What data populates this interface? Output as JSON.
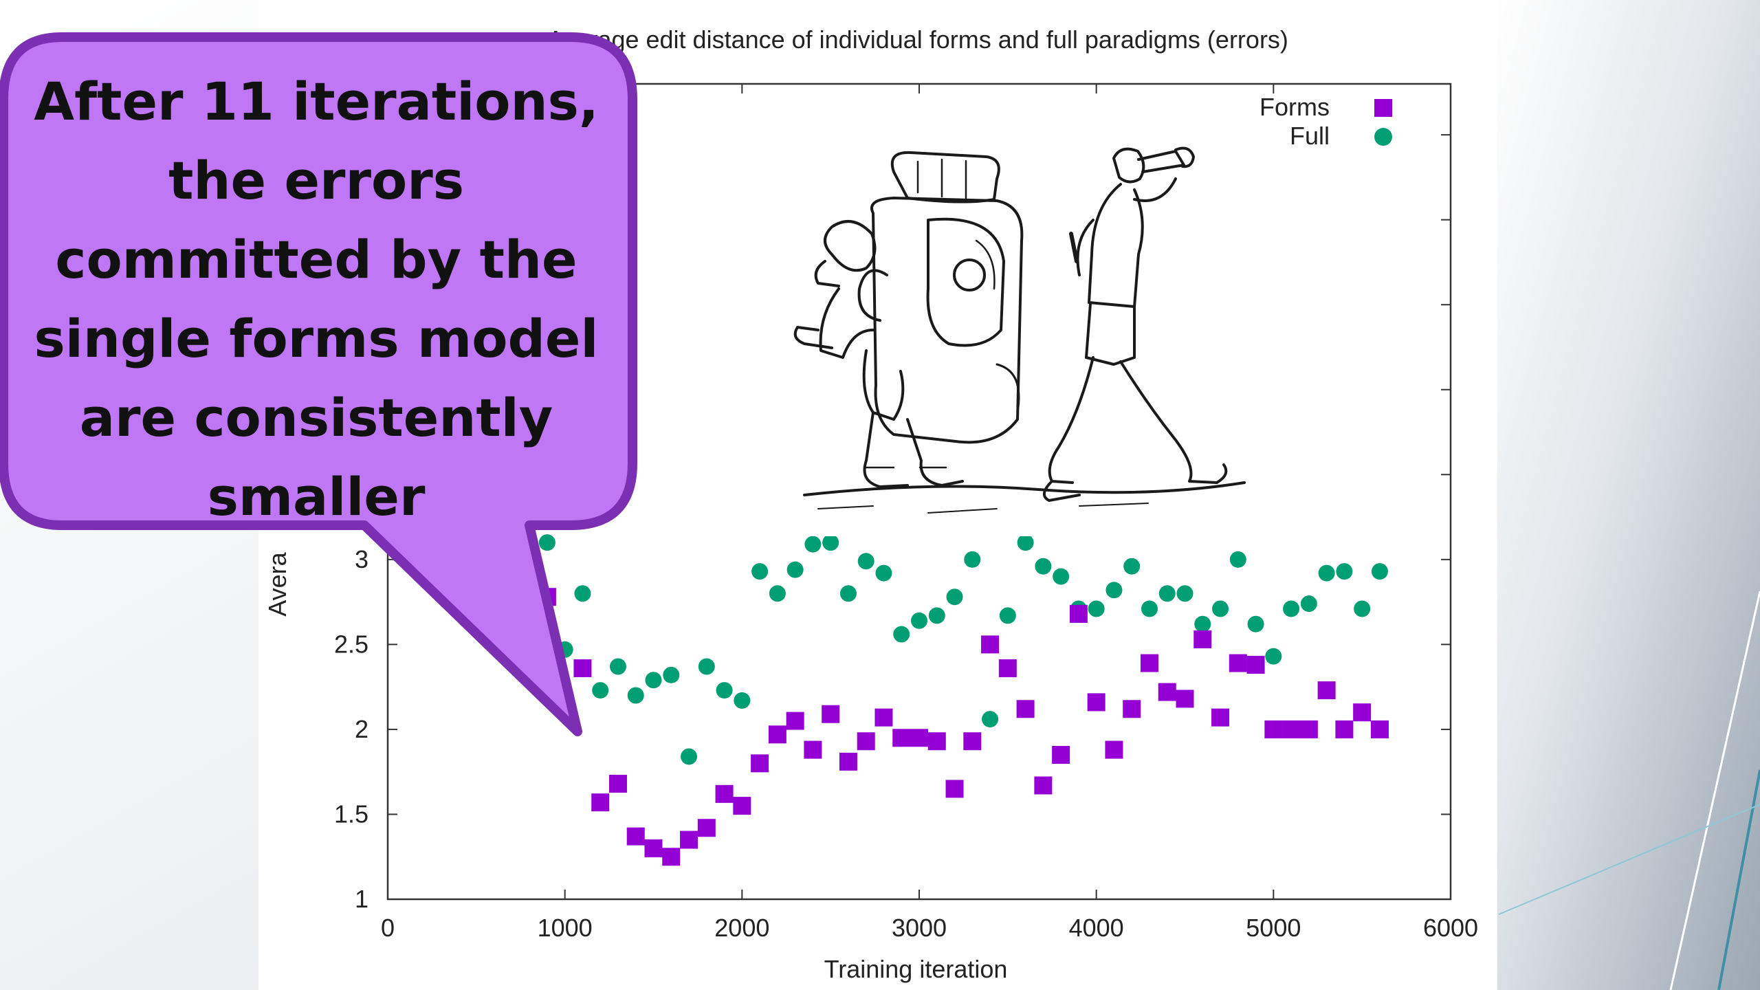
{
  "callout": {
    "text": "After 11 iterations,\nthe errors\ncommitted by the\nsingle forms model\nare consistently\nsmaller",
    "fill": "#c077f5",
    "stroke": "#7b2fb3"
  },
  "illustration": {
    "icon": "hikers-illustration"
  },
  "chart_data": {
    "type": "scatter",
    "title": "Average edit distance of individual forms and full paradigms (errors)",
    "xlabel": "Training iteration",
    "ylabel": "Avera",
    "xlim": [
      0,
      6000
    ],
    "ylim": [
      1,
      5.8
    ],
    "x_ticks": [
      0,
      1000,
      2000,
      3000,
      4000,
      5000,
      6000
    ],
    "y_ticks": [
      1,
      1.5,
      2,
      2.5,
      3
    ],
    "x_tick_labels": [
      "0",
      "1000",
      "2000",
      "3000",
      "4000",
      "5000",
      "6000"
    ],
    "y_tick_labels": [
      "1",
      "1.5",
      "2",
      "2.5",
      "3"
    ],
    "legend_position": "top-right",
    "series": [
      {
        "name": "Forms",
        "marker": "square",
        "color": "#9400d3",
        "x": [
          900,
          1100,
          1200,
          1300,
          1400,
          1500,
          1600,
          1700,
          1800,
          1900,
          2000,
          2100,
          2200,
          2300,
          2400,
          2500,
          2600,
          2700,
          2800,
          2900,
          3000,
          3100,
          3200,
          3300,
          3400,
          3500,
          3600,
          3700,
          3800,
          3900,
          4000,
          4100,
          4200,
          4300,
          4400,
          4500,
          4600,
          4700,
          4800,
          4900,
          5000,
          5100,
          5200,
          5300,
          5400,
          5500,
          5600
        ],
        "y": [
          2.78,
          2.36,
          1.57,
          1.68,
          1.37,
          1.3,
          1.25,
          1.35,
          1.42,
          1.62,
          1.55,
          1.8,
          1.97,
          2.05,
          1.88,
          2.09,
          1.81,
          1.93,
          2.07,
          1.95,
          1.95,
          1.93,
          1.65,
          1.93,
          2.5,
          2.36,
          2.12,
          1.67,
          1.85,
          2.68,
          2.16,
          1.88,
          2.12,
          2.39,
          2.22,
          2.18,
          2.53,
          2.07,
          2.39,
          2.38,
          2.0,
          2.0,
          2.0,
          2.23,
          2.0,
          2.1,
          2.0
        ]
      },
      {
        "name": "Full",
        "marker": "circle",
        "color": "#009e73",
        "x": [
          900,
          1000,
          1100,
          1200,
          1300,
          1400,
          1500,
          1600,
          1700,
          1800,
          1900,
          2000,
          2100,
          2200,
          2300,
          2400,
          2500,
          2600,
          2700,
          2800,
          2900,
          3000,
          3100,
          3200,
          3300,
          3400,
          3500,
          3600,
          3700,
          3800,
          3900,
          4000,
          4100,
          4200,
          4300,
          4400,
          4500,
          4600,
          4700,
          4800,
          4900,
          5000,
          5100,
          5200,
          5300,
          5400,
          5500,
          5600
        ],
        "y": [
          3.1,
          2.47,
          2.8,
          2.23,
          2.37,
          2.2,
          2.29,
          2.32,
          1.84,
          2.37,
          2.23,
          2.17,
          2.93,
          2.8,
          2.94,
          3.09,
          3.1,
          2.8,
          2.99,
          2.92,
          2.56,
          2.64,
          2.67,
          2.78,
          3.0,
          2.06,
          2.67,
          3.1,
          2.96,
          2.9,
          2.71,
          2.71,
          2.82,
          2.96,
          2.71,
          2.8,
          2.8,
          2.62,
          2.71,
          3.0,
          2.62,
          2.43,
          2.71,
          2.74,
          2.92,
          2.93,
          2.71,
          2.93
        ]
      }
    ]
  }
}
